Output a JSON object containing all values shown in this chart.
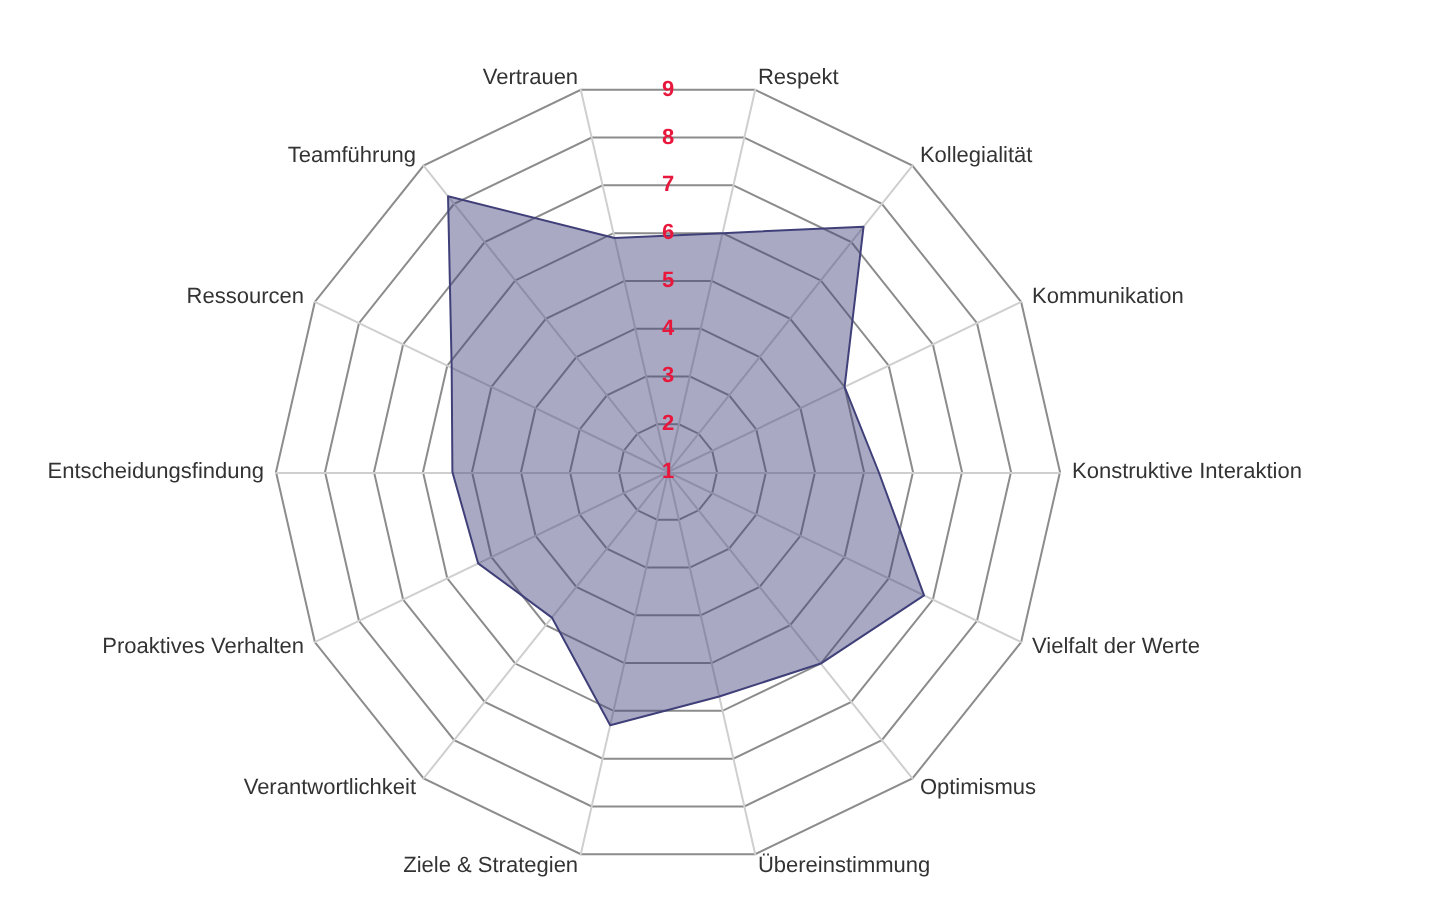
{
  "chart_data": {
    "type": "radar",
    "categories": [
      "Respekt",
      "Kollegialität",
      "Kommunikation",
      "Konstruktive Interaktion",
      "Vielfalt der Werte",
      "Optimismus",
      "Übereinstimmung",
      "Ziele & Strategien",
      "Verantwortlichkeit",
      "Proaktives Verhalten",
      "Entscheidungsfindung",
      "Ressourcen",
      "Teamführung",
      "Vertrauen"
    ],
    "series": [
      {
        "color": "#40407a",
        "values": [
          6,
          7.4,
          5,
          5.3,
          6.8,
          6,
          5.7,
          6.3,
          4.8,
          5.3,
          5.4,
          5.9,
          8.2,
          5.9
        ]
      }
    ],
    "ylim": [
      1,
      9
    ],
    "yticks": [
      1,
      2,
      3,
      4,
      5,
      6,
      7,
      8,
      9
    ],
    "grid": true,
    "marker": "none"
  }
}
